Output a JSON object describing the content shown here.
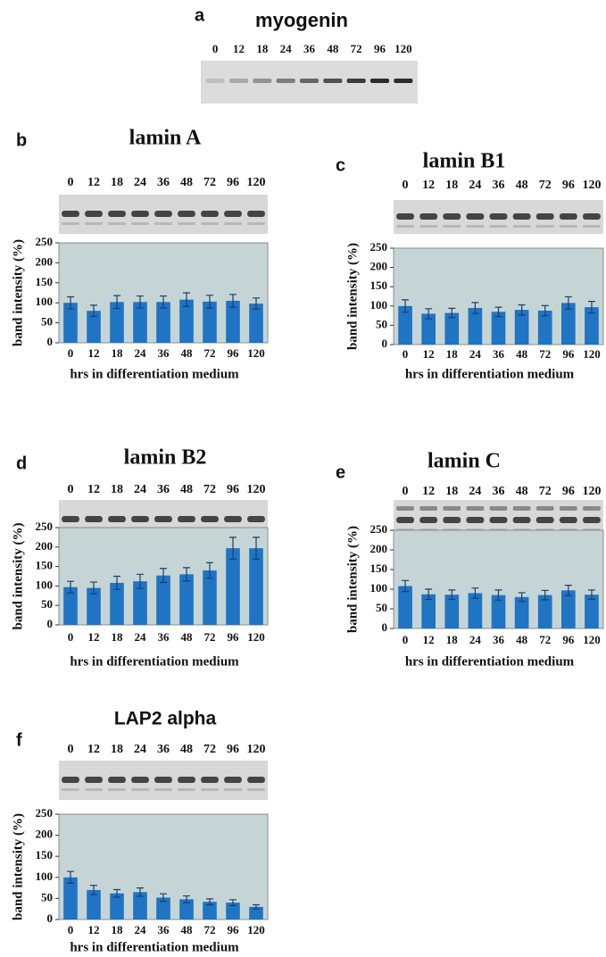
{
  "figure_a": {
    "label": "a",
    "title": "myogenin",
    "lanes": [
      "0",
      "12",
      "18",
      "24",
      "36",
      "48",
      "72",
      "96",
      "120"
    ]
  },
  "chart_data": [
    {
      "type": "bar",
      "label": "b",
      "title": "lamin A",
      "lanes": [
        "0",
        "12",
        "18",
        "24",
        "36",
        "48",
        "72",
        "96",
        "120"
      ],
      "categories": [
        "0",
        "12",
        "18",
        "24",
        "36",
        "48",
        "72",
        "96",
        "120"
      ],
      "values": [
        100,
        80,
        102,
        102,
        102,
        108,
        103,
        105,
        98
      ],
      "errors": [
        15,
        14,
        16,
        15,
        15,
        17,
        16,
        16,
        14
      ],
      "color": "#1f74c4",
      "background": "#c5d5d5",
      "ylim": [
        0,
        250
      ],
      "yticks": [
        0,
        50,
        100,
        150,
        200,
        250
      ],
      "ylabel": "band intensity (%)",
      "xlabel": "hrs in differentiation medium"
    },
    {
      "type": "bar",
      "label": "c",
      "title": "lamin B1",
      "lanes": [
        "0",
        "12",
        "18",
        "24",
        "36",
        "48",
        "72",
        "96",
        "120"
      ],
      "categories": [
        "0",
        "12",
        "18",
        "24",
        "36",
        "48",
        "72",
        "96",
        "120"
      ],
      "values": [
        100,
        80,
        82,
        95,
        85,
        90,
        88,
        108,
        97
      ],
      "errors": [
        16,
        13,
        12,
        14,
        12,
        13,
        13,
        16,
        15
      ],
      "color": "#1f74c4",
      "background": "#c5d5d5",
      "ylim": [
        0,
        250
      ],
      "yticks": [
        0,
        50,
        100,
        150,
        200,
        250
      ],
      "ylabel": "band intensity (%)",
      "xlabel": "hrs in differentiation medium"
    },
    {
      "type": "bar",
      "label": "d",
      "title": "lamin B2",
      "lanes": [
        "0",
        "12",
        "18",
        "24",
        "36",
        "48",
        "72",
        "96",
        "120"
      ],
      "categories": [
        "0",
        "12",
        "18",
        "24",
        "36",
        "48",
        "72",
        "96",
        "120"
      ],
      "values": [
        97,
        95,
        108,
        112,
        127,
        130,
        140,
        197,
        197
      ],
      "errors": [
        15,
        15,
        17,
        18,
        18,
        17,
        20,
        28,
        28
      ],
      "color": "#1f74c4",
      "background": "#c5d5d5",
      "ylim": [
        0,
        250
      ],
      "yticks": [
        0,
        50,
        100,
        150,
        200,
        250
      ],
      "ylabel": "band intensity (%)",
      "xlabel": "hrs in differentiation medium"
    },
    {
      "type": "bar",
      "label": "e",
      "title": "lamin C",
      "lanes": [
        "0",
        "12",
        "18",
        "24",
        "36",
        "48",
        "72",
        "96",
        "120"
      ],
      "categories": [
        "0",
        "12",
        "18",
        "24",
        "36",
        "48",
        "72",
        "96",
        "120"
      ],
      "values": [
        108,
        87,
        86,
        90,
        85,
        80,
        85,
        97,
        86
      ],
      "errors": [
        14,
        13,
        12,
        13,
        13,
        11,
        12,
        13,
        12
      ],
      "color": "#1f74c4",
      "background": "#c5d5d5",
      "ylim": [
        0,
        250
      ],
      "yticks": [
        0,
        50,
        100,
        150,
        200,
        250
      ],
      "ylabel": "band intensity (%)",
      "xlabel": "hrs in differentiation medium"
    },
    {
      "type": "bar",
      "label": "f",
      "title": "LAP2 alpha",
      "lanes": [
        "0",
        "12",
        "18",
        "24",
        "36",
        "48",
        "72",
        "96",
        "120"
      ],
      "categories": [
        "0",
        "12",
        "18",
        "24",
        "36",
        "48",
        "72",
        "96",
        "120"
      ],
      "values": [
        100,
        70,
        62,
        65,
        52,
        48,
        42,
        40,
        30
      ],
      "errors": [
        14,
        11,
        9,
        10,
        9,
        8,
        7,
        7,
        5
      ],
      "color": "#1f74c4",
      "background": "#c5d5d5",
      "ylim": [
        0,
        250
      ],
      "yticks": [
        0,
        50,
        100,
        150,
        200,
        250
      ],
      "ylabel": "band intensity (%)",
      "xlabel": "hrs in differentiation medium"
    }
  ]
}
